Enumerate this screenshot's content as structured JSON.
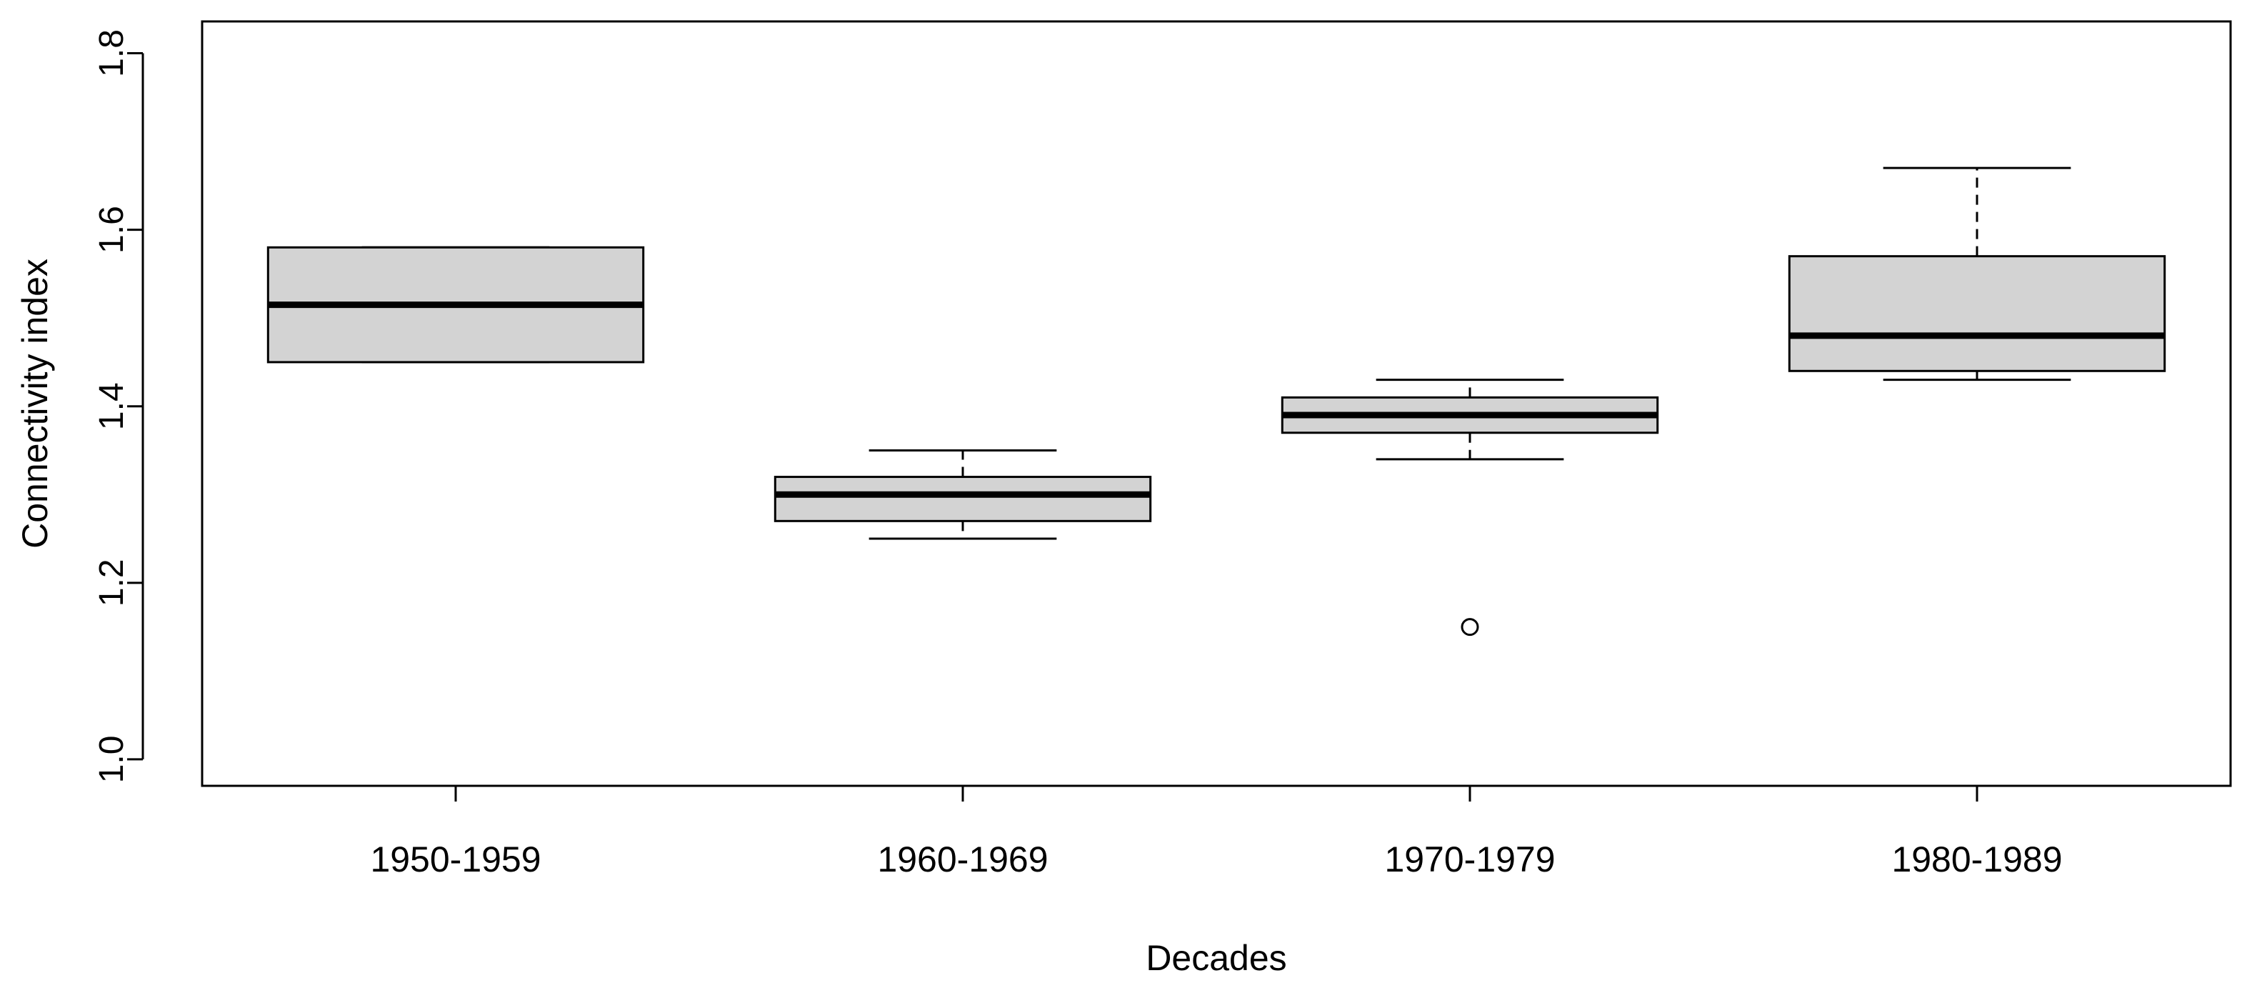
{
  "chart_data": {
    "type": "boxplot",
    "xlabel": "Decades",
    "ylabel": "Connectivity index",
    "categories": [
      "1950-1959",
      "1960-1969",
      "1970-1979",
      "1980-1989"
    ],
    "ylim": [
      0.97,
      1.836
    ],
    "yticks": [
      1.0,
      1.2,
      1.4,
      1.6,
      1.8
    ],
    "ytick_labels": [
      "1.0",
      "1.2",
      "1.4",
      "1.6",
      "1.8"
    ],
    "boxes": [
      {
        "category": "1950-1959",
        "whisker_low": 1.45,
        "q1": 1.45,
        "median": 1.515,
        "q3": 1.58,
        "whisker_high": 1.58,
        "outliers": []
      },
      {
        "category": "1960-1969",
        "whisker_low": 1.25,
        "q1": 1.27,
        "median": 1.3,
        "q3": 1.32,
        "whisker_high": 1.35,
        "outliers": []
      },
      {
        "category": "1970-1979",
        "whisker_low": 1.34,
        "q1": 1.37,
        "median": 1.39,
        "q3": 1.41,
        "whisker_high": 1.43,
        "outliers": [
          1.15
        ]
      },
      {
        "category": "1980-1989",
        "whisker_low": 1.43,
        "q1": 1.44,
        "median": 1.48,
        "q3": 1.57,
        "whisker_high": 1.67,
        "outliers": []
      }
    ],
    "box_fill": "#d3d3d3",
    "stroke_color": "#000000",
    "grid": false,
    "legend": "none"
  }
}
